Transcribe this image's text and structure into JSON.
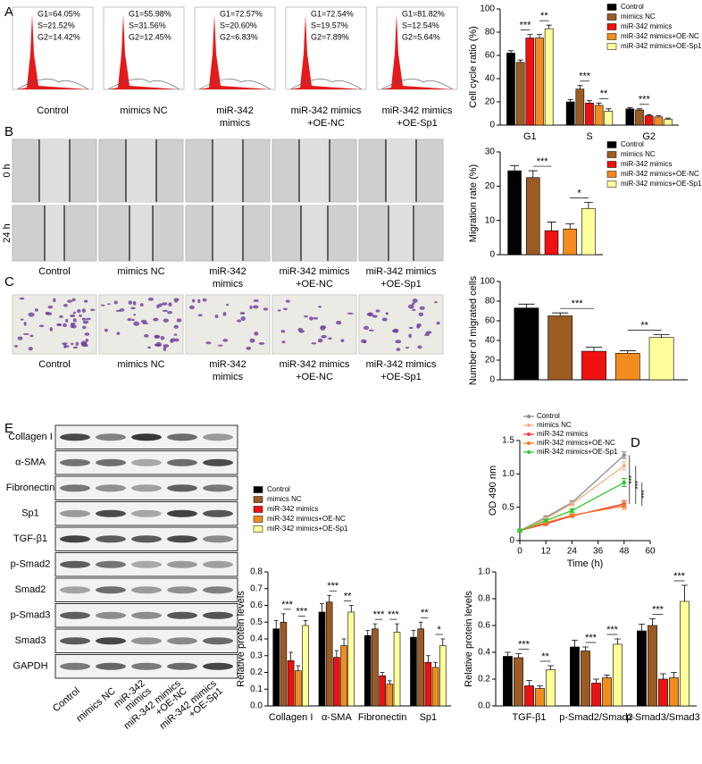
{
  "figure": {
    "panel_labels": [
      "A",
      "B",
      "C",
      "D",
      "E"
    ],
    "groups": [
      [
        "Control"
      ],
      [
        "mimics NC"
      ],
      [
        "miR-342",
        "mimics"
      ],
      [
        "miR-342 mimics",
        "+OE-NC"
      ],
      [
        "miR-342 mimics",
        "+OE-Sp1"
      ]
    ],
    "flow_stats": [
      [
        "G1=64.05%",
        "S=21.52%",
        "G2=14.42%"
      ],
      [
        "G1=55.98%",
        "S=31.56%",
        "G2=12.45%"
      ],
      [
        "G1=72.57%",
        "S=20.60%",
        "G2=6.83%"
      ],
      [
        "G1=72.54%",
        "S=19.57%",
        "G2=7.89%"
      ],
      [
        "G1=81.82%",
        "S=12.54%",
        "G2=5.64%"
      ]
    ],
    "scratch_times": [
      "0 h",
      "24 h"
    ],
    "blot_proteins": [
      "Collagen I",
      "α-SMA",
      "Fibronectin",
      "Sp1",
      "TGF-β1",
      "p-Smad2",
      "Smad2",
      "p-Smad3",
      "Smad3",
      "GAPDH"
    ]
  },
  "chart_data": [
    {
      "type": "bar",
      "y_label": "Cell cycle ratio (%)",
      "categories": [
        "G1",
        "S",
        "G2"
      ],
      "ylim": [
        0,
        100
      ],
      "yticks": [
        0,
        20,
        40,
        60,
        80,
        100
      ],
      "legend": "upper right",
      "series": [
        {
          "name": "Control",
          "color": "#000000",
          "values": [
            62,
            20,
            14
          ],
          "errors": [
            2,
            2,
            1
          ]
        },
        {
          "name": "mimics NC",
          "color": "#9c5b22",
          "values": [
            54,
            31,
            13
          ],
          "errors": [
            2,
            3,
            1
          ]
        },
        {
          "name": "miR-342 mimics",
          "color": "#ee1111",
          "values": [
            75,
            19,
            8
          ],
          "errors": [
            3,
            2,
            1
          ]
        },
        {
          "name": "miR-342 mimics+OE-NC",
          "color": "#f28c1e",
          "values": [
            75,
            17,
            7
          ],
          "errors": [
            3,
            2,
            1
          ]
        },
        {
          "name": "miR-342 mimics+OE-Sp1",
          "color": "#ffff99",
          "values": [
            83,
            12,
            5
          ],
          "errors": [
            3,
            2,
            1
          ]
        }
      ],
      "annotations": [
        {
          "label": "***",
          "category": 0,
          "series": [
            1,
            2
          ]
        },
        {
          "label": "**",
          "category": 0,
          "series": [
            3,
            4
          ]
        },
        {
          "label": "***",
          "category": 1,
          "series": [
            1,
            2
          ]
        },
        {
          "label": "**",
          "category": 1,
          "series": [
            3,
            4
          ]
        },
        {
          "label": "***",
          "category": 2,
          "series": [
            1,
            2
          ]
        }
      ]
    },
    {
      "type": "bar",
      "y_label": "Migration rate (%)",
      "categories": [
        null
      ],
      "ylim": [
        0,
        30
      ],
      "yticks": [
        0,
        10,
        20,
        30
      ],
      "legend": "right",
      "series": [
        {
          "name": "Control",
          "color": "#000000",
          "values": [
            24.5
          ],
          "errors": [
            1.5
          ]
        },
        {
          "name": "mimics NC",
          "color": "#9c5b22",
          "values": [
            22.5
          ],
          "errors": [
            2
          ]
        },
        {
          "name": "miR-342 mimics",
          "color": "#ee1111",
          "values": [
            7
          ],
          "errors": [
            2.5
          ]
        },
        {
          "name": "miR-342 mimics+OE-NC",
          "color": "#f28c1e",
          "values": [
            7.5
          ],
          "errors": [
            1.5
          ]
        },
        {
          "name": "miR-342 mimics+OE-Sp1",
          "color": "#ffff99",
          "values": [
            13.5
          ],
          "errors": [
            1.8
          ]
        }
      ],
      "annotations": [
        {
          "label": "***",
          "category": 0,
          "series": [
            1,
            2
          ]
        },
        {
          "label": "*",
          "category": 0,
          "series": [
            3,
            4
          ]
        }
      ]
    },
    {
      "type": "bar",
      "y_label": "Number of migrated cells",
      "categories": [
        null
      ],
      "ylim": [
        0,
        100
      ],
      "yticks": [
        0,
        20,
        40,
        60,
        80,
        100
      ],
      "series": [
        {
          "color": "#000000",
          "values": [
            73
          ],
          "errors": [
            4
          ]
        },
        {
          "color": "#9c5b22",
          "values": [
            65
          ],
          "errors": [
            3
          ]
        },
        {
          "color": "#ee1111",
          "values": [
            29
          ],
          "errors": [
            4
          ]
        },
        {
          "color": "#f28c1e",
          "values": [
            27
          ],
          "errors": [
            2.5
          ]
        },
        {
          "color": "#ffff99",
          "values": [
            43
          ],
          "errors": [
            3
          ]
        }
      ],
      "annotations": [
        {
          "label": "***",
          "category": 0,
          "series": [
            1,
            2
          ]
        },
        {
          "label": "**",
          "category": 0,
          "series": [
            3,
            4
          ]
        }
      ]
    },
    {
      "type": "line",
      "x_label": "Time (h)",
      "y_label": "OD 490 nm",
      "x": [
        0,
        12,
        24,
        48
      ],
      "xlim": [
        0,
        60
      ],
      "xticks": [
        0,
        12,
        24,
        36,
        48,
        60
      ],
      "ylim": [
        0,
        1.5
      ],
      "yticks": [
        0,
        0.5,
        {
          "value": 1,
          "label": "1.0"
        },
        1.5
      ],
      "legend": "upper left",
      "series": [
        {
          "name": "Control",
          "color": "#8c8c8c",
          "values": [
            0.15,
            0.35,
            0.57,
            1.28
          ],
          "errors": [
            0.02,
            0.02,
            0.03,
            0.05
          ]
        },
        {
          "name": "mimics NC",
          "color": "#f4b183",
          "values": [
            0.15,
            0.33,
            0.55,
            1.12
          ],
          "errors": [
            0.02,
            0.02,
            0.03,
            0.06
          ]
        },
        {
          "name": "miR-342 mimics",
          "color": "#f03c3c",
          "values": [
            0.15,
            0.25,
            0.37,
            0.55
          ],
          "errors": [
            0.02,
            0.02,
            0.02,
            0.05
          ]
        },
        {
          "name": "miR-342 mimics+OE-NC",
          "color": "#f47b20",
          "values": [
            0.15,
            0.27,
            0.38,
            0.52
          ],
          "errors": [
            0.02,
            0.02,
            0.02,
            0.05
          ]
        },
        {
          "name": "miR-342 mimics+OE-Sp1",
          "color": "#2ecc2e",
          "values": [
            0.15,
            0.3,
            0.45,
            0.87
          ],
          "errors": [
            0.02,
            0.02,
            0.03,
            0.06
          ]
        }
      ],
      "annotations": [
        {
          "label": "***",
          "series": [
            0,
            2
          ]
        },
        {
          "label": "***",
          "series": [
            1,
            2
          ]
        },
        {
          "label": "***",
          "series": [
            3,
            4
          ]
        }
      ]
    },
    {
      "type": "bar",
      "y_label": "Relative protein levels",
      "categories": [
        "Collagen I",
        "α-SMA",
        "Fibronectin",
        "Sp1"
      ],
      "ylim": [
        0,
        0.8
      ],
      "yticks": [
        {
          "value": 0,
          "label": "0.0"
        },
        0.1,
        0.2,
        0.3,
        0.4,
        0.5,
        0.6,
        0.7,
        0.8
      ],
      "legend": "upper left",
      "series": [
        {
          "name": "Control",
          "color": "#000000",
          "values": [
            0.46,
            0.56,
            0.42,
            0.41
          ],
          "errors": [
            0.05,
            0.05,
            0.03,
            0.04
          ]
        },
        {
          "name": "mimics NC",
          "color": "#9c5b22",
          "values": [
            0.5,
            0.62,
            0.46,
            0.46
          ],
          "errors": [
            0.05,
            0.04,
            0.03,
            0.04
          ]
        },
        {
          "name": "miR-342 mimics",
          "color": "#ee1111",
          "values": [
            0.27,
            0.29,
            0.18,
            0.26
          ],
          "errors": [
            0.05,
            0.04,
            0.02,
            0.04
          ]
        },
        {
          "name": "miR-342 mimics+OE-NC",
          "color": "#f28c1e",
          "values": [
            0.21,
            0.36,
            0.13,
            0.23
          ],
          "errors": [
            0.03,
            0.04,
            0.02,
            0.03
          ]
        },
        {
          "name": "miR-342 mimics+OE-Sp1",
          "color": "#ffff99",
          "values": [
            0.48,
            0.56,
            0.44,
            0.36
          ],
          "errors": [
            0.03,
            0.04,
            0.05,
            0.04
          ]
        }
      ],
      "annotations": [
        {
          "label": "***",
          "category": 0,
          "series": [
            1,
            2
          ]
        },
        {
          "label": "***",
          "category": 0,
          "series": [
            3,
            4
          ]
        },
        {
          "label": "***",
          "category": 1,
          "series": [
            1,
            2
          ]
        },
        {
          "label": "**",
          "category": 1,
          "series": [
            3,
            4
          ]
        },
        {
          "label": "***",
          "category": 2,
          "series": [
            1,
            2
          ]
        },
        {
          "label": "***",
          "category": 2,
          "series": [
            3,
            4
          ]
        },
        {
          "label": "**",
          "category": 3,
          "series": [
            1,
            2
          ]
        },
        {
          "label": "*",
          "category": 3,
          "series": [
            3,
            4
          ]
        }
      ]
    },
    {
      "type": "bar",
      "y_label": "Relative protein levels",
      "categories": [
        "TGF-β1",
        "p-Smad2/Smad2",
        "p-Smad3/Smad3"
      ],
      "ylim": [
        0,
        1
      ],
      "yticks": [
        {
          "value": 0,
          "label": "0.0"
        },
        0.2,
        0.4,
        0.6,
        0.8,
        {
          "value": 1,
          "label": "1.0"
        }
      ],
      "series": [
        {
          "color": "#000000",
          "values": [
            0.37,
            0.44,
            0.56
          ],
          "errors": [
            0.03,
            0.05,
            0.05
          ]
        },
        {
          "color": "#9c5b22",
          "values": [
            0.36,
            0.41,
            0.6
          ],
          "errors": [
            0.03,
            0.03,
            0.05
          ]
        },
        {
          "color": "#ee1111",
          "values": [
            0.15,
            0.17,
            0.2
          ],
          "errors": [
            0.04,
            0.03,
            0.04
          ]
        },
        {
          "color": "#f28c1e",
          "values": [
            0.13,
            0.21,
            0.21
          ],
          "errors": [
            0.02,
            0.02,
            0.04
          ]
        },
        {
          "color": "#ffff99",
          "values": [
            0.27,
            0.46,
            0.78
          ],
          "errors": [
            0.03,
            0.04,
            0.12
          ]
        }
      ],
      "annotations": [
        {
          "label": "***",
          "category": 0,
          "series": [
            1,
            2
          ]
        },
        {
          "label": "**",
          "category": 0,
          "series": [
            3,
            4
          ]
        },
        {
          "label": "***",
          "category": 1,
          "series": [
            1,
            2
          ]
        },
        {
          "label": "***",
          "category": 1,
          "series": [
            3,
            4
          ]
        },
        {
          "label": "***",
          "category": 2,
          "series": [
            1,
            2
          ]
        },
        {
          "label": "***",
          "category": 2,
          "series": [
            3,
            4
          ]
        }
      ]
    }
  ]
}
